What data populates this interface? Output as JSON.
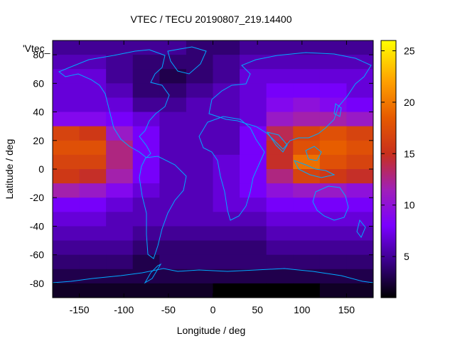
{
  "chart_data": {
    "type": "heatmap",
    "title": "VTEC / TECU 20190807_219.14400",
    "xlabel": "Longitude / deg",
    "ylabel": "Latitude / deg",
    "legend_key": "'Vtec_",
    "xlim": [
      -180,
      180
    ],
    "ylim": [
      -90,
      90
    ],
    "x_ticks": [
      -150,
      -100,
      -50,
      0,
      50,
      100,
      150
    ],
    "y_ticks": [
      -80,
      -60,
      -40,
      -20,
      0,
      20,
      40,
      60,
      80
    ],
    "colorbar": {
      "range": [
        1,
        26
      ],
      "ticks": [
        5,
        10,
        15,
        20,
        25
      ],
      "colors": [
        "#000000",
        "#3a0088",
        "#7a00ff",
        "#a020b8",
        "#c8301c",
        "#e65a00",
        "#ffa000",
        "#ffff00"
      ]
    },
    "vtec_grid_lat_step_deg": 10,
    "vtec_grid_lon_step_deg": 30,
    "vtec_grid_lats": [
      85,
      75,
      65,
      55,
      45,
      35,
      25,
      15,
      5,
      -5,
      -15,
      -25,
      -35,
      -45,
      -55,
      -65,
      -75,
      -85
    ],
    "vtec_grid_lons": [
      -165,
      -135,
      -105,
      -75,
      -45,
      -15,
      15,
      45,
      75,
      105,
      135,
      165
    ],
    "vtec_grid_values": [
      [
        5,
        5,
        5,
        5,
        5,
        4,
        4,
        5,
        5,
        5,
        5,
        5
      ],
      [
        6,
        6,
        5,
        4,
        4,
        4,
        5,
        6,
        6,
        6,
        6,
        6
      ],
      [
        7,
        7,
        5,
        4,
        3,
        4,
        5,
        7,
        7,
        7,
        7,
        7
      ],
      [
        7,
        7,
        6,
        4,
        4,
        5,
        6,
        7,
        8,
        8,
        8,
        7
      ],
      [
        7,
        7,
        7,
        5,
        5,
        6,
        6,
        7,
        9,
        10,
        9,
        8
      ],
      [
        9,
        9,
        8,
        7,
        6,
        6,
        6,
        7,
        11,
        12,
        12,
        11
      ],
      [
        17,
        16,
        11,
        8,
        6,
        6,
        6,
        8,
        14,
        17,
        18,
        17
      ],
      [
        18,
        18,
        13,
        8,
        6,
        6,
        6,
        8,
        15,
        18,
        19,
        18
      ],
      [
        17,
        17,
        13,
        8,
        6,
        6,
        7,
        8,
        15,
        20,
        18,
        17
      ],
      [
        16,
        15,
        12,
        8,
        6,
        6,
        7,
        8,
        13,
        17,
        16,
        15
      ],
      [
        12,
        11,
        9,
        7,
        6,
        6,
        7,
        8,
        10,
        11,
        11,
        10
      ],
      [
        8,
        8,
        7,
        6,
        6,
        6,
        7,
        7,
        8,
        8,
        8,
        8
      ],
      [
        7,
        7,
        6,
        6,
        6,
        6,
        6,
        6,
        7,
        7,
        7,
        7
      ],
      [
        6,
        6,
        6,
        5,
        5,
        5,
        5,
        5,
        6,
        6,
        6,
        6
      ],
      [
        5,
        5,
        5,
        4,
        4,
        4,
        4,
        4,
        5,
        5,
        5,
        5
      ],
      [
        4,
        4,
        4,
        3,
        4,
        4,
        4,
        4,
        4,
        4,
        4,
        4
      ],
      [
        3,
        3,
        3,
        3,
        3,
        3,
        3,
        3,
        3,
        3,
        3,
        3
      ],
      [
        2,
        2,
        2,
        2,
        2,
        2,
        1,
        1,
        1,
        1,
        2,
        2
      ]
    ],
    "coastline_color": "#00aaff",
    "grid": false
  }
}
